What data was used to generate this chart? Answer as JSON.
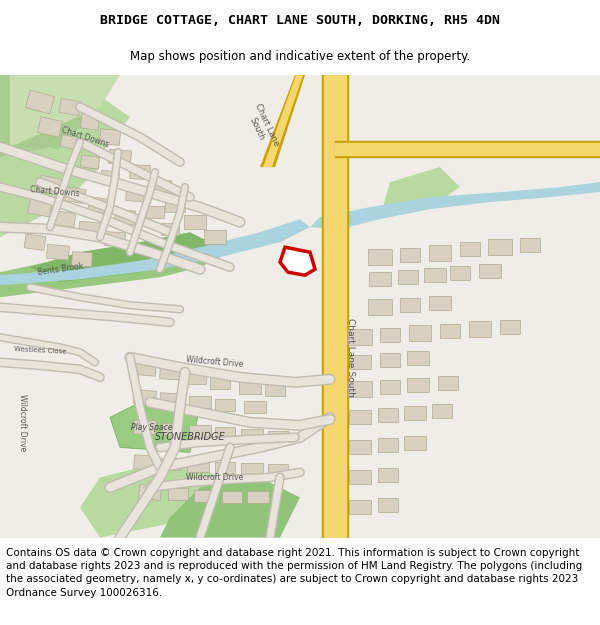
{
  "title_line1": "BRIDGE COTTAGE, CHART LANE SOUTH, DORKING, RH5 4DN",
  "title_line2": "Map shows position and indicative extent of the property.",
  "footer_text": "Contains OS data © Crown copyright and database right 2021. This information is subject to Crown copyright and database rights 2023 and is reproduced with the permission of HM Land Registry. The polygons (including the associated geometry, namely x, y co-ordinates) are subject to Crown copyright and database rights 2023 Ordnance Survey 100026316.",
  "bg_color": "#ffffff",
  "map_bg": "#f0ede8",
  "title_fontsize": 9.5,
  "subtitle_fontsize": 8.5,
  "footer_fontsize": 7.5,
  "road_yellow": "#f5d76e",
  "road_outline": "#c8a000",
  "green_light": "#b8d9a0",
  "green_dark": "#8bc878",
  "water_blue": "#aad3df",
  "building_gray": "#d0c8b8",
  "building_outline": "#b0a898",
  "plot_red": "#cc0000",
  "text_dark": "#333333",
  "road_label_color": "#555555"
}
